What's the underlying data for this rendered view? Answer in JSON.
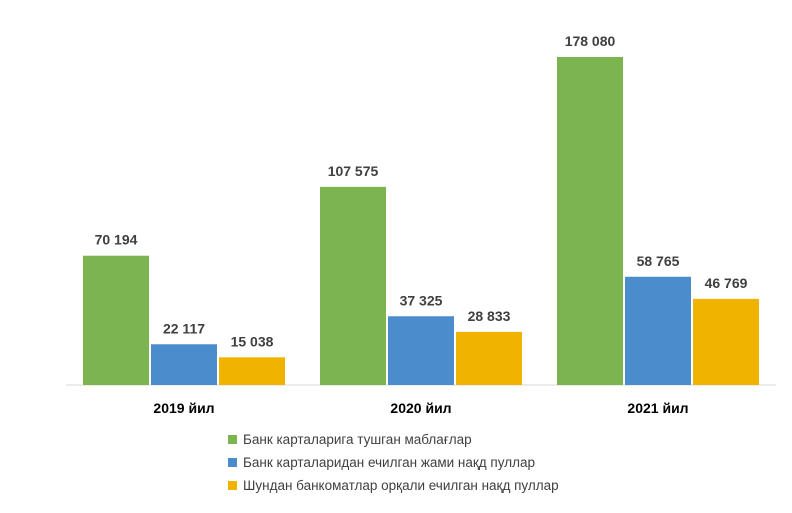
{
  "chart_data": {
    "type": "bar",
    "categories": [
      "2019 йил",
      "2020 йил",
      "2021 йил"
    ],
    "series": [
      {
        "name": "Банк карталарига тушган маблағлар",
        "values": [
          70194,
          107575,
          178080
        ],
        "labels": [
          "70 194",
          "107 575",
          "178 080"
        ],
        "color": "#7CB54F"
      },
      {
        "name": "Банк карталаридан ечилган жами нақд пуллар",
        "values": [
          22117,
          37325,
          58765
        ],
        "labels": [
          "22 117",
          "37 325",
          "58 765"
        ],
        "color": "#4A8CCC"
      },
      {
        "name": "Шундан банкоматлар орқали ечилган нақд пуллар",
        "values": [
          15038,
          28833,
          46769
        ],
        "labels": [
          "15 038",
          "28 833",
          "46 769"
        ],
        "color": "#F0B400"
      }
    ],
    "ylim": [
      0,
      200000
    ],
    "grid": false,
    "legend_position": "bottom"
  }
}
